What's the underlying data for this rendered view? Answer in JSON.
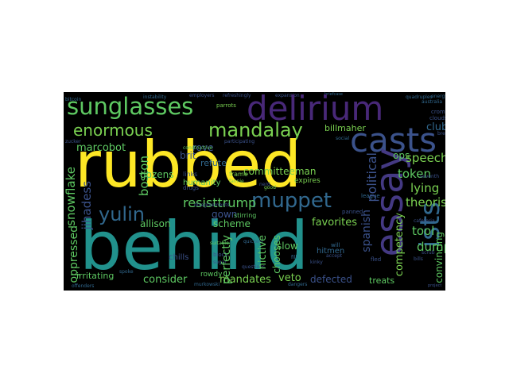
{
  "palette": {
    "yellow": "#fde725",
    "teal": "#2a9d8f",
    "tealdark": "#21918c",
    "green": "#5ec962",
    "lightgreen": "#7ad151",
    "purple": "#482878",
    "violet": "#3b528b",
    "blue": "#31688e",
    "darkblue": "#2c728e",
    "indigo": "#443983"
  },
  "words": {
    "rubbed": "rubbed",
    "behind": "behind",
    "delirium": "delirium",
    "sunglasses": "sunglasses",
    "casts": "casts",
    "essay": "essay",
    "enormous": "enormous",
    "mandalay": "mandalay",
    "yulin": "yulin",
    "muppet": "muppet",
    "ists": "ists",
    "snowflake": "snowflake",
    "boston": "boston",
    "jihadess": "jihadess",
    "oppressed": "oppressed",
    "resisttrump": "resisttrump",
    "spanish": "spanish",
    "political": "political",
    "speech": "speech",
    "theorist": "theorist",
    "lying": "lying",
    "dumps": "dumps",
    "tool": "tool",
    "favorites": "favorites",
    "token": "token",
    "ops": "ops",
    "clubs": "clubs",
    "billmaher": "billmaher",
    "rove": "rove",
    "marcobot": "marcobot",
    "allison": "allison",
    "scheme": "scheme",
    "consider": "consider",
    "irritating": "irritating",
    "mandates": "mandates",
    "veto": "veto",
    "defected": "defected",
    "treats": "treats",
    "competency": "competency",
    "convincing": "convincing",
    "lighting": "lighting",
    "dozens": "dozens",
    "humanity": "humanity",
    "committeeman": "committeeman",
    "gown": "gown",
    "brit": "brit",
    "refute": "refute",
    "rowdy": "rowdy",
    "perfectly": "perfectly",
    "nictive": "nictive",
    "chooses": "chooses",
    "slow": "slow",
    "hitmen": "hitmen",
    "chills": "chills",
    "expires": "expires",
    "frame": "frame",
    "links": "links",
    "stirring": "stirring",
    "employers": "employers",
    "refreshingly": "refreshingly",
    "expansion": "expansion",
    "quadruples": "quadruples",
    "australia": "australia",
    "energy": "energy",
    "crome": "crome",
    "clouds": "clouds",
    "cafeteria": "cafeteria",
    "bitcoin": "bitcoin",
    "instability": "instability",
    "parrots": "parrots",
    "briefcase": "briefcase",
    "zucker": "zucker",
    "league": "league",
    "seventh": "seventh",
    "murkowski": "murkowski",
    "dangers": "dangers",
    "offenders": "offenders",
    "spoke": "spoke",
    "block": "block",
    "sugar": "sugar",
    "kinky": "kinky",
    "accept": "accept",
    "scrub": "scrub",
    "bills": "bills",
    "participating": "participating",
    "constructive": "constructive",
    "fled": "fled",
    "panned": "panned",
    "drugs": "drugs",
    "nerd": "nerd",
    "fannie": "fannie",
    "funniest": "funniest",
    "jackass": "jackass",
    "culturally": "culturally",
    "fluffy": "fluffy",
    "break": "break",
    "project": "project",
    "social": "social",
    "fact": "fact",
    "blatant": "blatant",
    "unhealthy": "unhealthy",
    "applications": "applications",
    "disagreements": "disagreements",
    "quickest": "quickest",
    "legend": "legend",
    "mood": "mood",
    "alaska": "alaska",
    "nixon": "nixon",
    "basic": "basic",
    "kiss": "kiss",
    "titled": "titled",
    "bang": "bang",
    "bands": "bands",
    "abandon": "abandon",
    "patriots": "patriots",
    "relax": "relax",
    "staten": "staten",
    "arms": "arms",
    "hammer": "hammer",
    "liberalism": "liberalism",
    "obstacle": "obstacle",
    "inciting": "inciting",
    "compete": "compete",
    "fixes": "fixes",
    "buyers": "buyers",
    "plants": "plants",
    "sensible": "sensible",
    "cowards": "cowards",
    "hero": "hero",
    "gang": "gang",
    "unsure": "unsure",
    "marriage": "marriage",
    "dances": "dances",
    "rogue": "rogue",
    "fill": "fill",
    "suitable": "suitable",
    "questions": "questions",
    "sure": "sure",
    "will": "will",
    "ham": "ham",
    "good": "good",
    "tiny": "tiny",
    "here": "here",
    "drawings": "drawings",
    "shouted": "shouted",
    "pro": "pro",
    "hopes": "hopes",
    "racist": "racist"
  }
}
